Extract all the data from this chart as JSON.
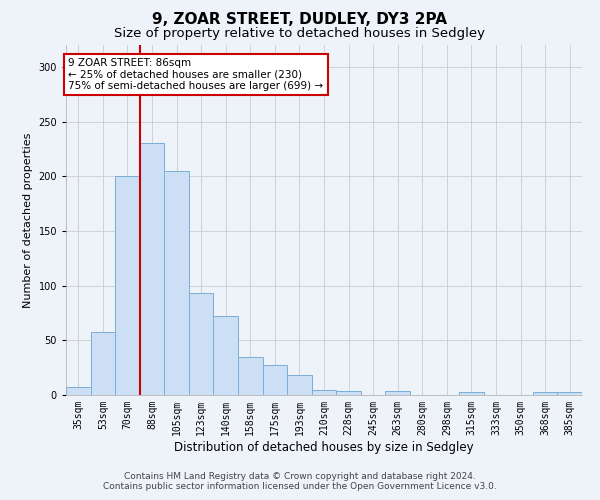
{
  "title": "9, ZOAR STREET, DUDLEY, DY3 2PA",
  "subtitle": "Size of property relative to detached houses in Sedgley",
  "xlabel": "Distribution of detached houses by size in Sedgley",
  "ylabel": "Number of detached properties",
  "categories": [
    "35sqm",
    "53sqm",
    "70sqm",
    "88sqm",
    "105sqm",
    "123sqm",
    "140sqm",
    "158sqm",
    "175sqm",
    "193sqm",
    "210sqm",
    "228sqm",
    "245sqm",
    "263sqm",
    "280sqm",
    "298sqm",
    "315sqm",
    "333sqm",
    "350sqm",
    "368sqm",
    "385sqm"
  ],
  "values": [
    7,
    58,
    200,
    230,
    205,
    93,
    72,
    35,
    27,
    18,
    5,
    4,
    0,
    4,
    0,
    0,
    3,
    0,
    0,
    3,
    3
  ],
  "bar_color": "#ccdff5",
  "bar_edge_color": "#7aaed6",
  "bar_edge_width": 0.7,
  "annotation_title": "9 ZOAR STREET: 86sqm",
  "annotation_line1": "← 25% of detached houses are smaller (230)",
  "annotation_line2": "75% of semi-detached houses are larger (699) →",
  "annotation_box_color": "white",
  "annotation_box_edge": "#cc0000",
  "red_line_color": "#cc0000",
  "red_line_index": 3,
  "ylim": [
    0,
    320
  ],
  "yticks": [
    0,
    50,
    100,
    150,
    200,
    250,
    300
  ],
  "grid_color": "#cccccc",
  "background_color": "#eef2f9",
  "footer_line1": "Contains HM Land Registry data © Crown copyright and database right 2024.",
  "footer_line2": "Contains public sector information licensed under the Open Government Licence v3.0.",
  "title_fontsize": 11,
  "subtitle_fontsize": 9.5,
  "xlabel_fontsize": 8.5,
  "ylabel_fontsize": 8,
  "tick_fontsize": 7,
  "footer_fontsize": 6.5,
  "ann_fontsize": 7.5
}
